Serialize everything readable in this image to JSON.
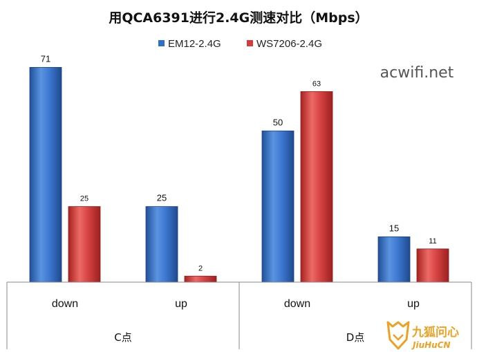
{
  "chart_data": {
    "type": "bar",
    "title": "用QCA6391进行2.4G测速对比（Mbps）",
    "groups": [
      {
        "label": "C点",
        "categories": [
          "down",
          "up"
        ]
      },
      {
        "label": "D点",
        "categories": [
          "down",
          "up"
        ]
      }
    ],
    "categories": [
      "down",
      "up",
      "down",
      "up"
    ],
    "series": [
      {
        "name": "EM12-2.4G",
        "color": "#2f6fc9",
        "values": [
          71,
          25,
          50,
          15
        ]
      },
      {
        "name": "WS7206-2.4G",
        "color": "#d63b3b",
        "values": [
          25,
          2,
          63,
          11
        ]
      }
    ],
    "ylim": [
      0,
      80
    ],
    "grid": false,
    "legend_position": "top-center"
  },
  "watermark": {
    "site": "acwifi.net",
    "logo_cn": "九狐问心",
    "logo_en": "JiuHuCN"
  }
}
